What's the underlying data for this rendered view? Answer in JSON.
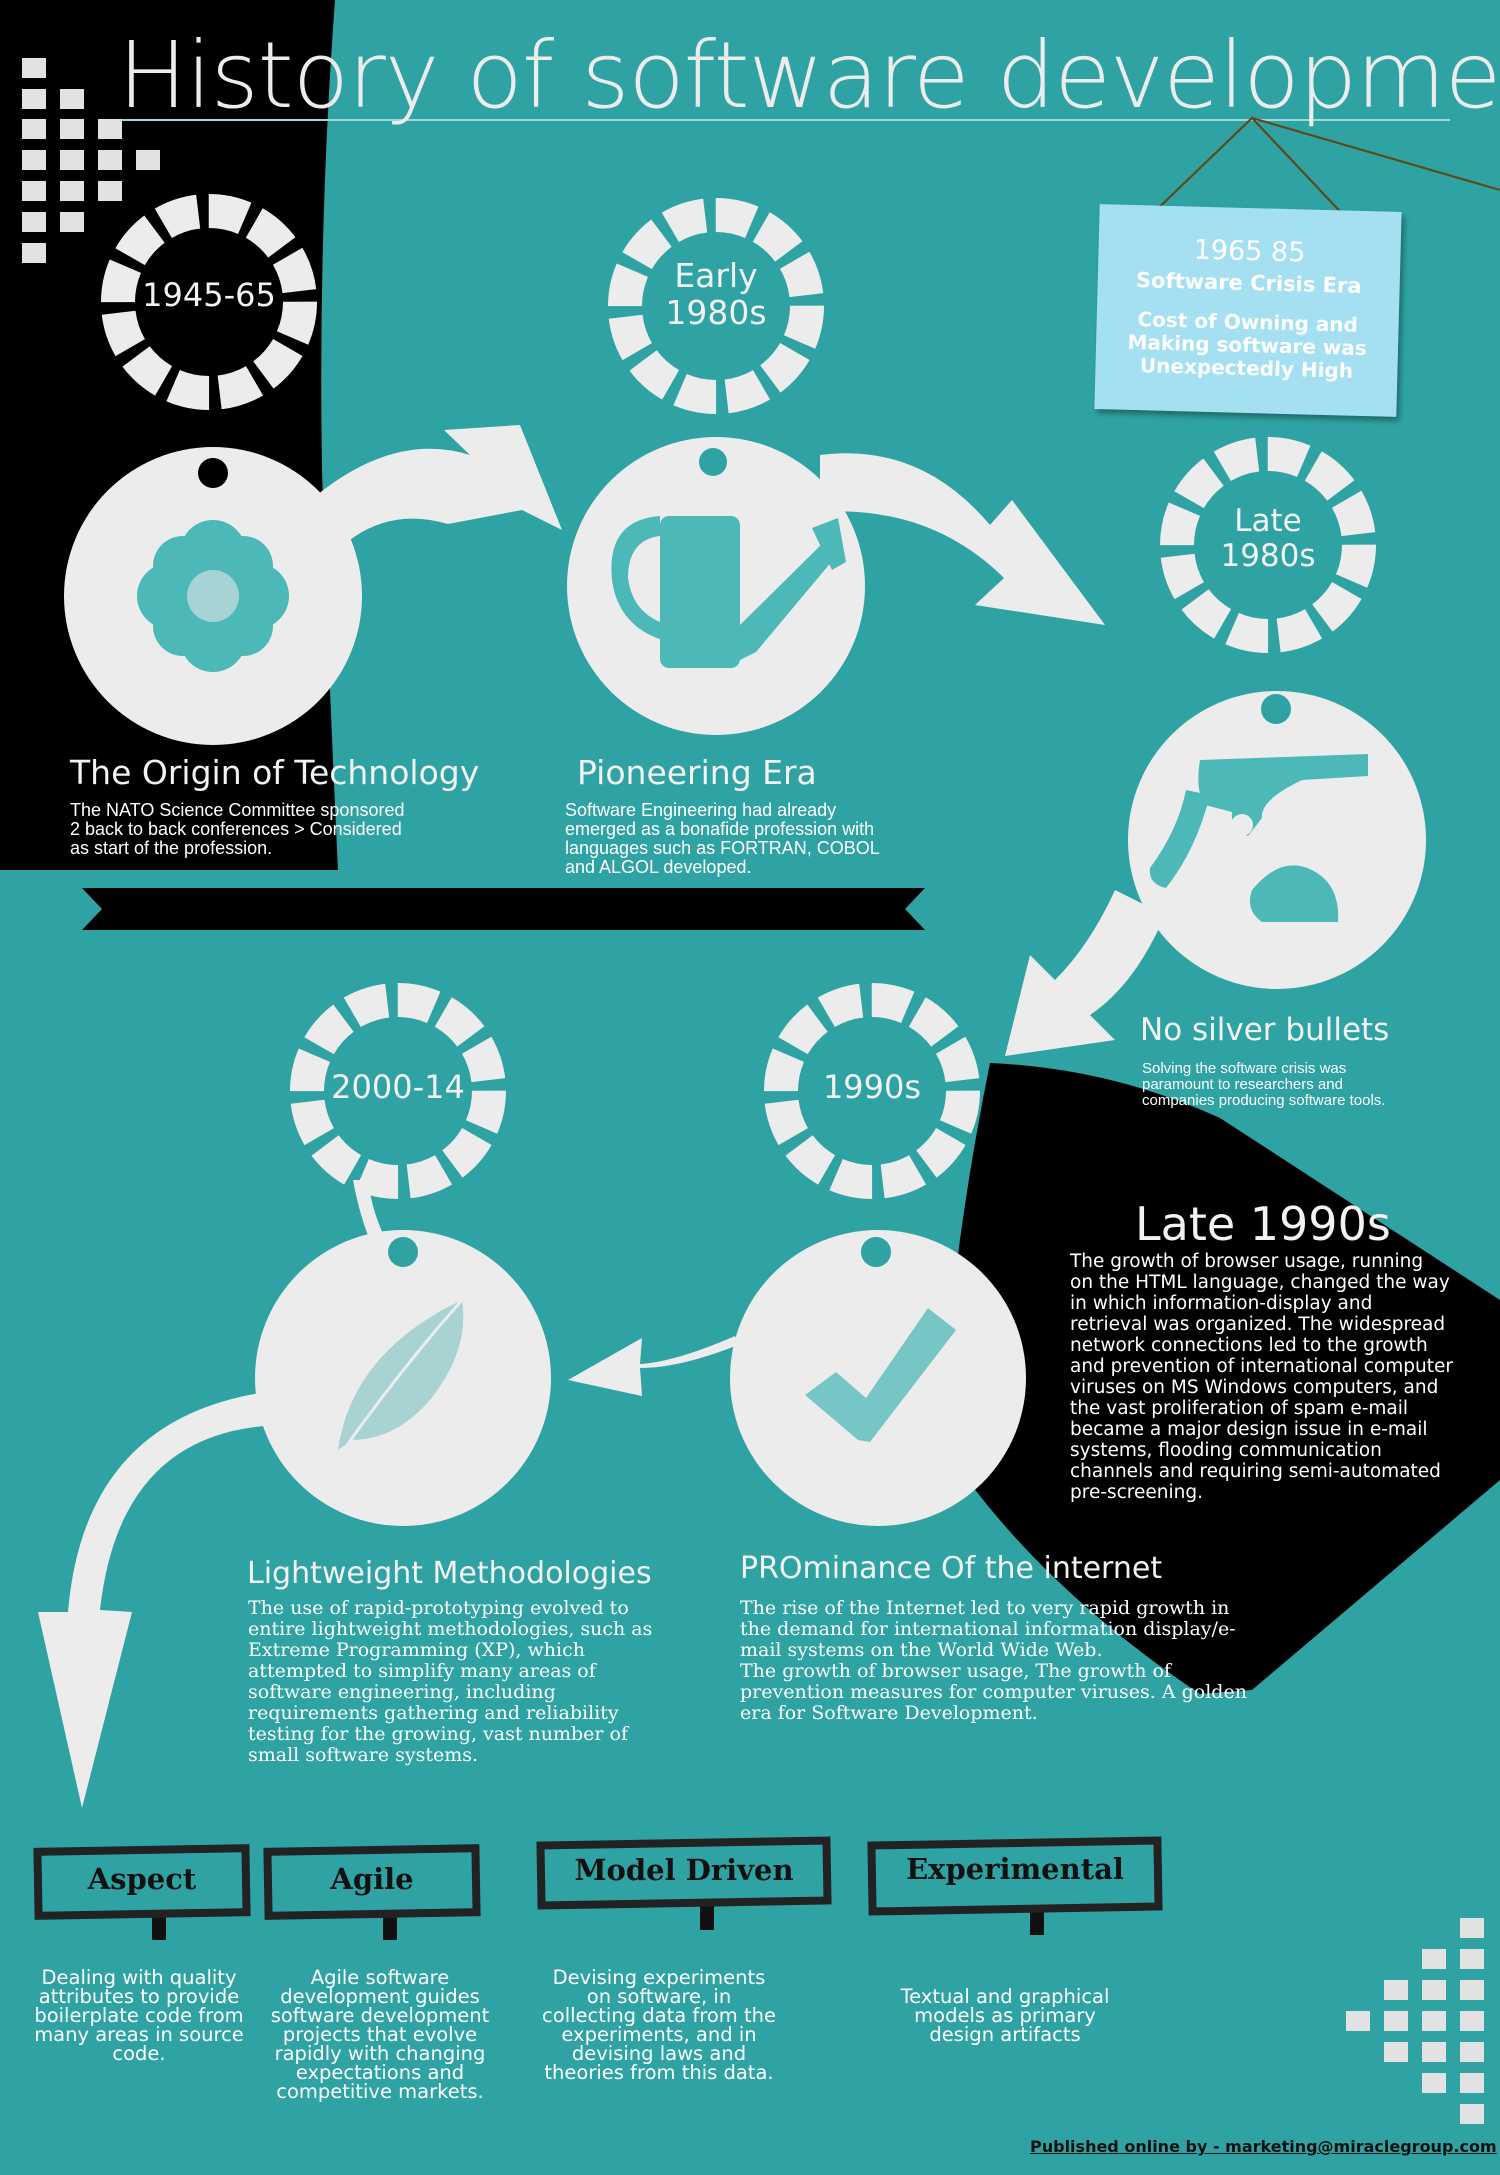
{
  "page": {
    "title": "History of software  development",
    "footer": "Published online by - marketing@miraclegroup.com"
  },
  "colors": {
    "teal_background": "#2fa3a3",
    "black_panel": "#000000",
    "light_grey": "#ececec",
    "icon_teal": "#4cb8b8",
    "card_blue": "#a4dff2"
  },
  "timeline": [
    {
      "era": "1945-65",
      "heading": "The Origin of Technology",
      "text": "The NATO Science Committee sponsored\n2 back to back conferences > Considered\nas start of the profession.",
      "icon": "flower-icon"
    },
    {
      "era": "Early\n1980s",
      "heading": "Pioneering Era",
      "text": "Software Engineering had already\nemerged as a bonafide profession with\nlanguages such as FORTRAN, COBOL\nand ALGOL developed.",
      "icon": "watering-can-icon"
    },
    {
      "era": "Late\n1980s",
      "heading": "No silver bullets",
      "text": "Solving the software crisis was\nparamount to researchers and\ncompanies producing software tools.",
      "icon": "revolver-icon"
    },
    {
      "era": "1990s",
      "heading": "PROminance Of the internet",
      "text": "The rise of the Internet led to very rapid growth in\nthe demand for international information display/e-\nmail systems on the World Wide Web.\nThe growth of browser usage, The growth of\nprevention measures for computer viruses. A golden\nera for Software Development.",
      "icon": "checkmark-icon"
    },
    {
      "era": "2000-14",
      "heading": "Lightweight Methodologies",
      "text": "The use of rapid-prototyping evolved to\nentire lightweight methodologies, such as\nExtreme Programming (XP), which\nattempted to simplify many areas of\nsoftware engineering, including\nrequirements gathering and reliability\ntesting for the growing, vast number of\nsmall software systems.",
      "icon": "feather-icon"
    }
  ],
  "crisis_card": {
    "years": "1965 85",
    "title": "Software Crisis Era",
    "text": "Cost of Owning and\nMaking software was\nUnexpectedly High"
  },
  "late_1990s": {
    "heading": "Late 1990s",
    "text": "The growth of browser usage, running\non the HTML language, changed the way\nin which information-display and\nretrieval was organized. The widespread\nnetwork connections led to the growth\nand prevention of international computer\nviruses on MS Windows computers, and\nthe vast proliferation of spam e-mail\nbecame a major design issue in e-mail\nsystems, flooding communication\nchannels and requiring semi-automated\npre-screening."
  },
  "signs": [
    {
      "label": "Aspect",
      "text": "Dealing with quality\nattributes to provide\nboilerplate code from\nmany areas in source\ncode."
    },
    {
      "label": "Agile",
      "text": "Agile software\ndevelopment guides\nsoftware development\nprojects that evolve\nrapidly with changing\nexpectations and\ncompetitive markets."
    },
    {
      "label": "Model Driven",
      "text": "Devising experiments\non software, in\ncollecting data from the\nexperiments, and in\ndevising laws and\ntheories from this data."
    },
    {
      "label": "Experimental",
      "text": "Textual and graphical\nmodels as primary\ndesign artifacts"
    }
  ]
}
